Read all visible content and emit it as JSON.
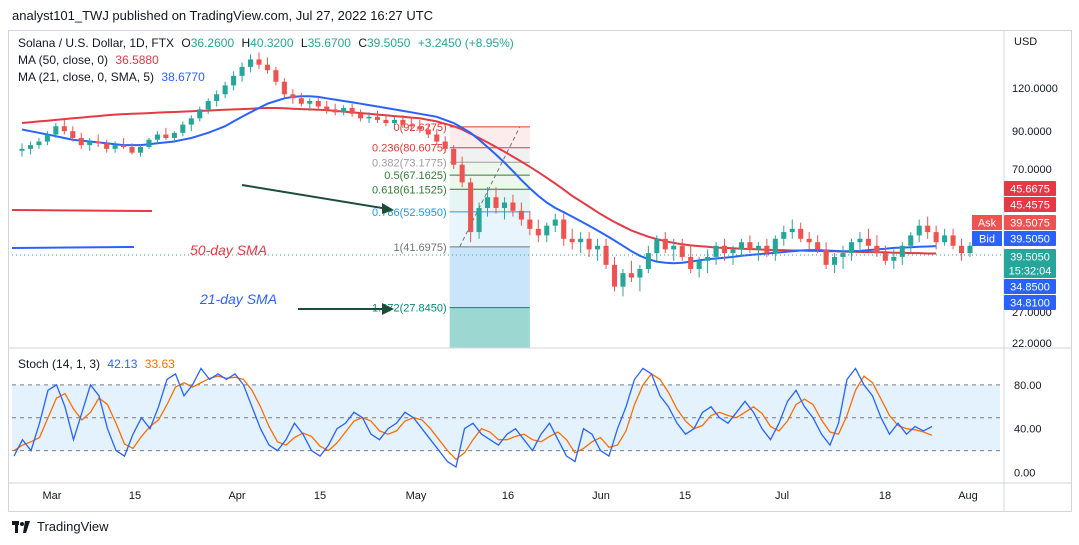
{
  "header": {
    "publisher": "analyst101_TWJ published on TradingView.com, Jul 27, 2022 16:27 UTC"
  },
  "legend_main": {
    "symbol": "Solana / U.S. Dollar, 1D, FTX",
    "o_label": "O",
    "o": "36.2600",
    "h_label": "H",
    "h": "40.3200",
    "l_label": "L",
    "l": "35.6700",
    "c_label": "C",
    "c": "39.5050",
    "change": "+3.2450 (+8.95%)",
    "ma50_label": "MA (50, close, 0)",
    "ma50_value": "36.5880",
    "ma21_label": "MA (21, close, 0, SMA, 5)",
    "ma21_value": "38.6770"
  },
  "legend_stoch": {
    "label": "Stoch (14, 1, 3)",
    "k": "42.13",
    "d": "33.63"
  },
  "footer": {
    "logo_text": "TradingView"
  },
  "colors": {
    "up": "#26a69a",
    "down": "#ef5350",
    "ma50": "#e53945",
    "ma21": "#2962ff",
    "stoch_k": "#2962ff",
    "stoch_d": "#ff6d00",
    "stoch_band": "#e3f2fd",
    "arrow": "#1b4d3e",
    "fib_green": "#2e7d32",
    "fib_blue": "#2196f3",
    "fib_red": "#e53935"
  },
  "chart_data": [
    {
      "type": "candlestick",
      "title": "Solana / U.S. Dollar, 1D, FTX",
      "ylabel": "USD",
      "scale": "log",
      "ylim": [
        22,
        165
      ],
      "yticks": [
        "120.0000",
        "90.0000",
        "70.0000",
        "27.0000",
        "22.0000"
      ],
      "xticks": [
        "Mar",
        "15",
        "Apr",
        "15",
        "May",
        "16",
        "Jun",
        "15",
        "Jul",
        "18",
        "Aug"
      ],
      "price_labels": [
        {
          "name": "MA50",
          "value": "45.6675"
        },
        {
          "name": "MA50b",
          "value": "45.4575"
        },
        {
          "name": "Ask",
          "value": "39.5075"
        },
        {
          "name": "Bid",
          "value": "39.5050"
        },
        {
          "name": "Last",
          "value": "39.5050"
        },
        {
          "name": "Countdown",
          "value": "15:32:04"
        },
        {
          "name": "MA21",
          "value": "34.8500"
        },
        {
          "name": "MA21b",
          "value": "34.8100"
        }
      ],
      "fib_levels": [
        {
          "ratio": "0",
          "price": "(92.6275)",
          "value": 92.6275
        },
        {
          "ratio": "0.236",
          "price": "(80.6075)",
          "value": 80.6075
        },
        {
          "ratio": "0.382",
          "price": "(73.1775)",
          "value": 73.1775
        },
        {
          "ratio": "0.5",
          "price": "(67.1625)",
          "value": 67.1625
        },
        {
          "ratio": "0.618",
          "price": "(61.1525)",
          "value": 61.1525
        },
        {
          "ratio": "0.786",
          "price": "(52.5950)",
          "value": 52.595
        },
        {
          "ratio": "1",
          "price": "(41.6975)",
          "value": 41.6975
        },
        {
          "ratio": "1.272",
          "price": "(27.8450)",
          "value": 27.845
        }
      ],
      "annotations": [
        "50-day SMA",
        "21-day SMA"
      ],
      "candles": [
        [
          79,
          83,
          76,
          80
        ],
        [
          80,
          84,
          77,
          82
        ],
        [
          82,
          86,
          80,
          84
        ],
        [
          84,
          90,
          82,
          88
        ],
        [
          88,
          95,
          86,
          93
        ],
        [
          93,
          97,
          88,
          90
        ],
        [
          90,
          93,
          84,
          86
        ],
        [
          86,
          89,
          80,
          82
        ],
        [
          82,
          86,
          79,
          84
        ],
        [
          84,
          88,
          81,
          83
        ],
        [
          83,
          85,
          78,
          80
        ],
        [
          80,
          84,
          78,
          82
        ],
        [
          82,
          86,
          80,
          81
        ],
        [
          81,
          83,
          77,
          78
        ],
        [
          78,
          82,
          76,
          81
        ],
        [
          81,
          86,
          80,
          85
        ],
        [
          85,
          90,
          83,
          88
        ],
        [
          88,
          92,
          85,
          86
        ],
        [
          86,
          90,
          84,
          89
        ],
        [
          89,
          96,
          87,
          94
        ],
        [
          94,
          100,
          90,
          98
        ],
        [
          98,
          106,
          96,
          104
        ],
        [
          104,
          112,
          101,
          110
        ],
        [
          110,
          118,
          106,
          115
        ],
        [
          115,
          125,
          112,
          122
        ],
        [
          122,
          134,
          118,
          130
        ],
        [
          130,
          142,
          125,
          138
        ],
        [
          138,
          150,
          133,
          145
        ],
        [
          145,
          152,
          136,
          140
        ],
        [
          140,
          147,
          132,
          135
        ],
        [
          135,
          138,
          122,
          125
        ],
        [
          125,
          128,
          112,
          115
        ],
        [
          115,
          119,
          108,
          112
        ],
        [
          112,
          116,
          106,
          108
        ],
        [
          108,
          112,
          103,
          110
        ],
        [
          110,
          113,
          104,
          106
        ],
        [
          106,
          110,
          101,
          104
        ],
        [
          104,
          108,
          100,
          102
        ],
        [
          102,
          107,
          100,
          105
        ],
        [
          105,
          108,
          99,
          101
        ],
        [
          101,
          104,
          96,
          98
        ],
        [
          98,
          102,
          95,
          99
        ],
        [
          99,
          103,
          95,
          97
        ],
        [
          97,
          100,
          93,
          95
        ],
        [
          95,
          99,
          93,
          97
        ],
        [
          97,
          100,
          92,
          94
        ],
        [
          94,
          98,
          90,
          93
        ],
        [
          93,
          97,
          89,
          91
        ],
        [
          91,
          94,
          86,
          88
        ],
        [
          88,
          91,
          82,
          84
        ],
        [
          84,
          87,
          78,
          80
        ],
        [
          80,
          82,
          70,
          72
        ],
        [
          72,
          76,
          62,
          64
        ],
        [
          64,
          66,
          43,
          46
        ],
        [
          46,
          56,
          44,
          54
        ],
        [
          54,
          62,
          51,
          58
        ],
        [
          58,
          62,
          52,
          54
        ],
        [
          54,
          58,
          50,
          56
        ],
        [
          56,
          59,
          51,
          53
        ],
        [
          53,
          56,
          48,
          50
        ],
        [
          50,
          53,
          45,
          47
        ],
        [
          47,
          50,
          43,
          45
        ],
        [
          45,
          49,
          43,
          48
        ],
        [
          48,
          52,
          46,
          50
        ],
        [
          50,
          52,
          42,
          44
        ],
        [
          44,
          47,
          41,
          43
        ],
        [
          43,
          46,
          40,
          44
        ],
        [
          44,
          46,
          39,
          41
        ],
        [
          41,
          44,
          38,
          42
        ],
        [
          42,
          44,
          36,
          37
        ],
        [
          37,
          39,
          31,
          32
        ],
        [
          32,
          36,
          30,
          35
        ],
        [
          35,
          38,
          33,
          34
        ],
        [
          34,
          37,
          31,
          36
        ],
        [
          36,
          42,
          35,
          40
        ],
        [
          40,
          45,
          38,
          44
        ],
        [
          44,
          46,
          40,
          41
        ],
        [
          41,
          44,
          38,
          42
        ],
        [
          42,
          44,
          38,
          39
        ],
        [
          39,
          42,
          35,
          36
        ],
        [
          36,
          39,
          34,
          38
        ],
        [
          38,
          41,
          35,
          39
        ],
        [
          39,
          43,
          37,
          42
        ],
        [
          42,
          44,
          38,
          40
        ],
        [
          40,
          42,
          37,
          41
        ],
        [
          41,
          44,
          39,
          43
        ],
        [
          43,
          45,
          40,
          41
        ],
        [
          41,
          43,
          38,
          42
        ],
        [
          42,
          44,
          39,
          40
        ],
        [
          40,
          45,
          38,
          44
        ],
        [
          44,
          48,
          42,
          46
        ],
        [
          46,
          50,
          44,
          47
        ],
        [
          47,
          49,
          43,
          44
        ],
        [
          44,
          46,
          41,
          43
        ],
        [
          43,
          45,
          40,
          41
        ],
        [
          41,
          43,
          36,
          37
        ],
        [
          37,
          40,
          35,
          39
        ],
        [
          39,
          42,
          36,
          40
        ],
        [
          40,
          44,
          38,
          43
        ],
        [
          43,
          46,
          40,
          44
        ],
        [
          44,
          47,
          41,
          42
        ],
        [
          42,
          45,
          39,
          40
        ],
        [
          40,
          42,
          37,
          38
        ],
        [
          38,
          41,
          36,
          39
        ],
        [
          39,
          43,
          37,
          42
        ],
        [
          42,
          46,
          40,
          45
        ],
        [
          45,
          50,
          43,
          48
        ],
        [
          48,
          51,
          44,
          46
        ],
        [
          46,
          48,
          41,
          43
        ],
        [
          43,
          47,
          42,
          45
        ],
        [
          45,
          47,
          41,
          42
        ],
        [
          42,
          44,
          38,
          40
        ],
        [
          40,
          43,
          39,
          42
        ]
      ],
      "series": [
        {
          "name": "MA (50, close, 0)",
          "values": [
            95,
            95.5,
            96,
            96.5,
            97,
            97.5,
            98,
            98.5,
            99,
            99.5,
            100,
            100.5,
            100.8,
            101,
            101.2,
            101.5,
            101.8,
            102,
            102.2,
            102.5,
            102.8,
            103,
            103.2,
            103.5,
            103.8,
            104,
            104.2,
            104.5,
            104.8,
            105,
            105,
            104.8,
            104.5,
            104.2,
            104,
            103.8,
            103.5,
            103,
            102.5,
            102,
            101.5,
            101,
            100.5,
            100,
            99.5,
            99,
            98.5,
            98,
            97,
            96,
            94.5,
            93,
            91,
            88.5,
            86,
            83.5,
            81,
            78.5,
            76,
            73.5,
            71,
            68.5,
            66,
            63.5,
            61,
            58.5,
            56.5,
            54.5,
            52.5,
            50.8,
            49.2,
            47.8,
            46.5,
            45.5,
            44.6,
            43.9,
            43.3,
            42.8,
            42.4,
            42.1,
            41.9,
            41.7,
            41.5,
            41.4,
            41.3,
            41.2,
            41.1,
            41,
            40.9,
            40.8,
            40.8,
            40.7,
            40.7,
            40.6,
            40.6,
            40.5,
            40.5,
            40.4,
            40.4,
            40.3,
            40.3,
            40.2,
            40.2,
            40.1,
            40.1,
            40,
            40,
            39.9,
            39.9
          ]
        },
        {
          "name": "MA (21, close, 0, SMA, 5)",
          "values": [
            91,
            90,
            89,
            88,
            87,
            86,
            85,
            84.5,
            84,
            83.5,
            83,
            82.5,
            82,
            82,
            82,
            82.5,
            83,
            83.5,
            84,
            85,
            86,
            87.5,
            89,
            91,
            93,
            96,
            99,
            102,
            105,
            108,
            110,
            112,
            113,
            113.5,
            113.5,
            113,
            112,
            111,
            110,
            109,
            108,
            107,
            106,
            105,
            104,
            103,
            102,
            101,
            100,
            99,
            97,
            95,
            92,
            89,
            85,
            81,
            77,
            73,
            69,
            65,
            61.5,
            58.5,
            56,
            54,
            52.5,
            51,
            49.5,
            48,
            46.5,
            45,
            43.5,
            42,
            40.5,
            39.3,
            38.4,
            37.8,
            37.5,
            37.4,
            37.5,
            37.8,
            38.1,
            38.4,
            38.6,
            38.8,
            39,
            39.3,
            39.5,
            39.7,
            39.9,
            40.1,
            40.3,
            40.5,
            40.7,
            40.8,
            40.8,
            40.7,
            40.6,
            40.5,
            40.5,
            40.6,
            40.8,
            41,
            41.2,
            41.4,
            41.5,
            41.6,
            41.7,
            41.8,
            41.9
          ]
        }
      ]
    },
    {
      "type": "line",
      "title": "Stoch (14, 1, 3)",
      "ylim": [
        -5,
        110
      ],
      "yticks": [
        "80.00",
        "40.00",
        "0.00"
      ],
      "bands": [
        20,
        50,
        80
      ],
      "series": [
        {
          "name": "%K",
          "values": [
            15,
            30,
            20,
            45,
            75,
            80,
            60,
            30,
            55,
            80,
            70,
            40,
            20,
            15,
            35,
            50,
            40,
            60,
            85,
            90,
            70,
            80,
            95,
            85,
            90,
            85,
            90,
            80,
            60,
            40,
            25,
            20,
            30,
            45,
            35,
            20,
            15,
            25,
            40,
            45,
            55,
            50,
            35,
            30,
            40,
            45,
            55,
            50,
            40,
            30,
            20,
            10,
            5,
            40,
            45,
            35,
            30,
            25,
            35,
            40,
            30,
            20,
            35,
            45,
            30,
            15,
            10,
            40,
            35,
            20,
            15,
            40,
            60,
            85,
            95,
            90,
            70,
            60,
            45,
            35,
            40,
            55,
            60,
            50,
            45,
            55,
            65,
            55,
            40,
            30,
            45,
            65,
            75,
            60,
            50,
            35,
            25,
            45,
            85,
            95,
            80,
            70,
            50,
            35,
            45,
            35,
            42,
            38,
            42
          ]
        },
        {
          "name": "%D",
          "values": [
            20,
            25,
            28,
            32,
            50,
            68,
            72,
            58,
            48,
            55,
            68,
            62,
            45,
            26,
            22,
            33,
            42,
            48,
            62,
            78,
            82,
            78,
            82,
            86,
            88,
            86,
            87,
            85,
            75,
            60,
            42,
            28,
            25,
            32,
            36,
            33,
            24,
            20,
            27,
            37,
            47,
            50,
            47,
            38,
            35,
            38,
            47,
            50,
            48,
            40,
            30,
            20,
            12,
            18,
            30,
            40,
            37,
            30,
            30,
            33,
            35,
            30,
            28,
            33,
            37,
            30,
            18,
            22,
            28,
            32,
            23,
            25,
            38,
            62,
            80,
            90,
            85,
            73,
            58,
            47,
            40,
            43,
            52,
            55,
            52,
            50,
            55,
            60,
            54,
            42,
            38,
            47,
            62,
            67,
            62,
            48,
            37,
            35,
            52,
            75,
            88,
            82,
            67,
            52,
            43,
            40,
            39,
            37,
            34
          ]
        }
      ]
    }
  ]
}
